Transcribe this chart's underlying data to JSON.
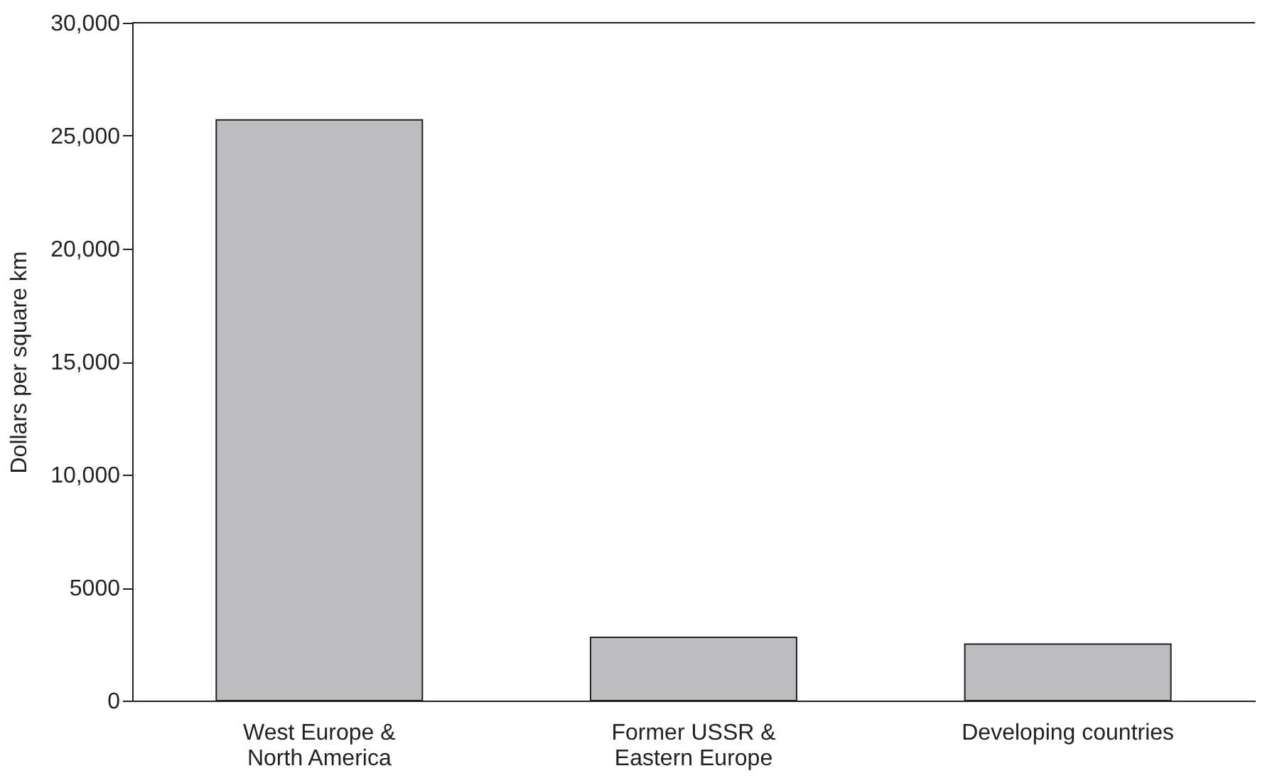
{
  "chart_data": {
    "type": "bar",
    "categories": [
      "West Europe & North America",
      "Former USSR & Eastern Europe",
      "Developing countries"
    ],
    "values": [
      25700,
      2800,
      2500
    ],
    "color": "#bcbdc1",
    "ylabel": "Dollars per square km",
    "ylim": [
      0,
      30000
    ],
    "yticks": [
      0,
      5000,
      {
        "value": 10000,
        "label": "10,000"
      },
      {
        "value": 15000,
        "label": "15,000"
      },
      {
        "value": 20000,
        "label": "20,000"
      },
      {
        "value": 25000,
        "label": "25,000"
      },
      {
        "value": 30000,
        "label": "30,000"
      }
    ],
    "grid": false
  }
}
